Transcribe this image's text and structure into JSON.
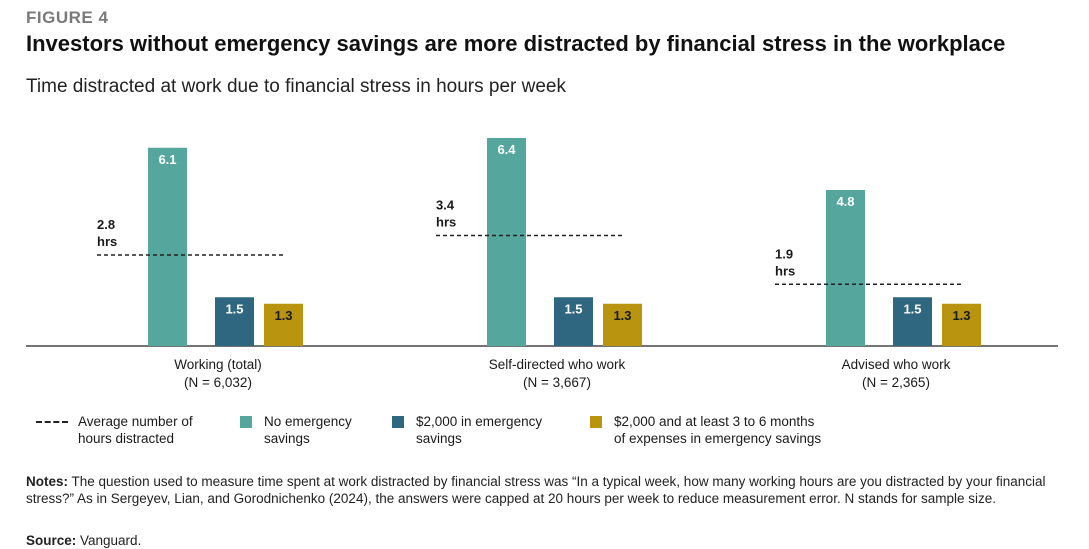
{
  "figure_label": "FIGURE 4",
  "title": "Investors without emergency savings are more distracted by financial stress in the workplace",
  "subtitle": "Time distracted at work due to financial stress in hours per week",
  "chart_data": {
    "type": "bar",
    "categories": [
      "Working (total)",
      "Self-directed who work",
      "Advised who work"
    ],
    "category_sublabels": [
      "(N = 6,032)",
      "(N = 3,667)",
      "(N = 2,365)"
    ],
    "series": [
      {
        "name": "No emergency savings",
        "values": [
          6.1,
          6.4,
          4.8
        ],
        "color": "#55a69c"
      },
      {
        "name": "$2,000 in emergency savings",
        "values": [
          1.5,
          1.5,
          1.5
        ],
        "color": "#2f6680"
      },
      {
        "name": "$2,000 and at least 3 to 6 months of expenses in emergency savings",
        "values": [
          1.3,
          1.3,
          1.3
        ],
        "color": "#b8940f"
      }
    ],
    "average_lines": {
      "name": "Average number of hours distracted",
      "values": [
        2.8,
        3.4,
        1.9
      ],
      "labels": [
        "2.8",
        "3.4",
        "1.9"
      ],
      "unit": "hrs"
    },
    "ylim": [
      0,
      6.8
    ],
    "grid": false,
    "legend": "bottom"
  },
  "legend": {
    "average": "Average number of\nhours distracted",
    "no_savings": "No emergency\nsavings",
    "two_thousand": "$2,000 in emergency\nsavings",
    "months": "$2,000 and at least 3 to 6 months\nof expenses in emergency savings"
  },
  "notes": {
    "label": "Notes:",
    "text": " The question used to measure time spent at work distracted by financial stress was “In a typical week, how many working hours are you distracted by your financial stress?” As in Sergeyev, Lian, and Gorodnichenko (2024), the answers were capped at 20 hours per week to reduce measurement error. N stands for sample size."
  },
  "source": {
    "label": "Source:",
    "text": " Vanguard."
  },
  "colors": {
    "teal": "#55a69c",
    "navy": "#2f6680",
    "gold": "#b8940f",
    "figure_label": "#7a7a7a"
  }
}
